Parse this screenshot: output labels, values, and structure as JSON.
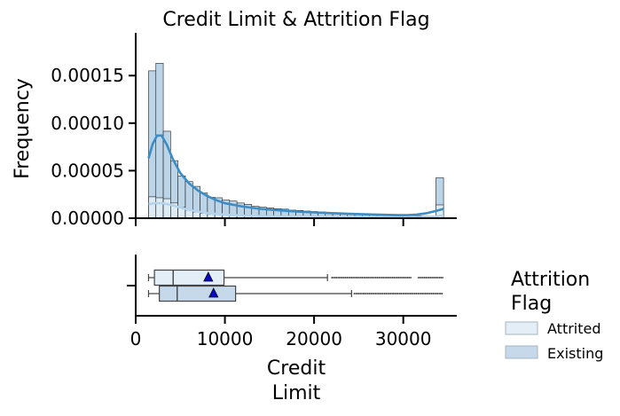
{
  "chart_data": [
    {
      "type": "histogram",
      "title": "Credit Limit & Attrition Flag",
      "xlabel": "",
      "ylabel": "Frequency",
      "xlim": [
        0,
        36000
      ],
      "ylim": [
        0,
        0.000195
      ],
      "yticks": [
        0,
        5e-05,
        0.0001,
        0.00015
      ],
      "ytick_labels": [
        "0.00000",
        "0.00005",
        "0.00010",
        "0.00015"
      ],
      "bin_edges": [
        1438,
        2264,
        3090,
        3916,
        4742,
        5568,
        6394,
        7220,
        8046,
        8872,
        9698,
        10524,
        11350,
        12176,
        13002,
        13828,
        14654,
        15480,
        16306,
        17132,
        17958,
        18784,
        19610,
        20436,
        21262,
        22088,
        22914,
        23740,
        24566,
        25392,
        26218,
        27044,
        27870,
        28696,
        29522,
        30348,
        31174,
        32000,
        32826,
        33652,
        34516
      ],
      "series": [
        {
          "name": "Existing",
          "color": "#bcd4e8",
          "values": [
            0.000155,
            0.000163,
            9.15e-05,
            6.05e-05,
            4.45e-05,
            3.85e-05,
            3.35e-05,
            2.65e-05,
            2.2e-05,
            2.15e-05,
            1.9e-05,
            1.8e-05,
            1.6e-05,
            1.45e-05,
            1.25e-05,
            1.15e-05,
            1.08e-05,
            1e-05,
            9.5e-06,
            8.5e-06,
            8.2e-06,
            7.5e-06,
            7e-06,
            6.6e-06,
            6.2e-06,
            5.8e-06,
            5.3e-06,
            4.9e-06,
            4.5e-06,
            4.1e-06,
            3.7e-06,
            3.5e-06,
            3.2e-06,
            3e-06,
            2.8e-06,
            2.6e-06,
            2.4e-06,
            2.2e-06,
            2.1e-06,
            4.25e-05
          ],
          "kde": [
            [
              1438,
              6.3e-05
            ],
            [
              1900,
              7.8e-05
            ],
            [
              2400,
              8.7e-05
            ],
            [
              2900,
              8.7e-05
            ],
            [
              3500,
              7.7e-05
            ],
            [
              4200,
              6.15e-05
            ],
            [
              5000,
              4.75e-05
            ],
            [
              6000,
              3.65e-05
            ],
            [
              7000,
              2.9e-05
            ],
            [
              8000,
              2.35e-05
            ],
            [
              9000,
              1.9e-05
            ],
            [
              10000,
              1.58e-05
            ],
            [
              12000,
              1.22e-05
            ],
            [
              14000,
              9.8e-06
            ],
            [
              16000,
              8.3e-06
            ],
            [
              18000,
              7.1e-06
            ],
            [
              20000,
              6.1e-06
            ],
            [
              22000,
              5.3e-06
            ],
            [
              24000,
              4.6e-06
            ],
            [
              26000,
              4e-06
            ],
            [
              28000,
              3.5e-06
            ],
            [
              29500,
              3.2e-06
            ],
            [
              30500,
              3.3e-06
            ],
            [
              31500,
              3.8e-06
            ],
            [
              32500,
              5e-06
            ],
            [
              33500,
              7.2e-06
            ],
            [
              34516,
              9.8e-06
            ]
          ]
        },
        {
          "name": "Attrited",
          "color": "#e3eef6",
          "values": [
            2.25e-05,
            2.15e-05,
            2.05e-05,
            1.6e-05,
            1.15e-05,
            8.5e-06,
            6.5e-06,
            5e-06,
            4.2e-06,
            3.6e-06,
            3.2e-06,
            2.8e-06,
            2.6e-06,
            2.4e-06,
            2.2e-06,
            2e-06,
            1.9e-06,
            1.8e-06,
            1.7e-06,
            1.6e-06,
            1.5e-06,
            1.5e-06,
            1.4e-06,
            1.4e-06,
            1.3e-06,
            1.3e-06,
            1.2e-06,
            1.2e-06,
            1.1e-06,
            1.1e-06,
            1e-06,
            1e-06,
            1e-06,
            1e-06,
            9e-07,
            9e-07,
            9e-07,
            9e-07,
            9e-07,
            1.4e-05
          ],
          "kde": [
            [
              1438,
              1.48e-05
            ],
            [
              2200,
              1.58e-05
            ],
            [
              3000,
              1.58e-05
            ],
            [
              4000,
              1.38e-05
            ],
            [
              5000,
              1.12e-05
            ],
            [
              6000,
              8.8e-06
            ],
            [
              7000,
              6.8e-06
            ],
            [
              8000,
              5.3e-06
            ],
            [
              10000,
              3.6e-06
            ],
            [
              12000,
              2.7e-06
            ],
            [
              15000,
              2e-06
            ],
            [
              18000,
              1.6e-06
            ],
            [
              22000,
              1.3e-06
            ],
            [
              26000,
              1.1e-06
            ],
            [
              30000,
              1e-06
            ],
            [
              32500,
              1.2e-06
            ],
            [
              33500,
              1.7e-06
            ],
            [
              34516,
              2.8e-06
            ]
          ]
        }
      ],
      "grid": false
    },
    {
      "type": "boxplot",
      "orientation": "horizontal",
      "xlabel": "Credit\nLimit",
      "xlabel_lines": [
        "Credit",
        "Limit"
      ],
      "xlim": [
        0,
        36000
      ],
      "xticks": [
        0,
        10000,
        20000,
        30000
      ],
      "xtick_labels": [
        "0",
        "10000",
        "20000",
        "30000"
      ],
      "series": [
        {
          "name": "Attrited",
          "color": "#e3eef6",
          "min": 1438,
          "q1": 2100,
          "median": 4200,
          "q3": 9900,
          "max": 21500,
          "mean": 8136,
          "outlier_ranges": [
            [
              22000,
              30900
            ],
            [
              31700,
              34516
            ]
          ]
        },
        {
          "name": "Existing",
          "color": "#c6d9ea",
          "min": 1438,
          "q1": 2650,
          "median": 4650,
          "q3": 11200,
          "max": 24200,
          "mean": 8727,
          "outlier_ranges": [
            [
              24500,
              34516
            ]
          ]
        }
      ]
    }
  ],
  "legend": {
    "title_lines": [
      "Attrition",
      "Flag"
    ],
    "placement": "right",
    "entries": [
      {
        "label": "Attrited",
        "color": "#e3eef6"
      },
      {
        "label": "Existing",
        "color": "#c6d9ea"
      }
    ]
  },
  "colors": {
    "kde_existing": "#3d8cc4",
    "kde_attrited": "#b5d3ea",
    "bar_edge": "#222222",
    "mean_marker": "#0a0ac8",
    "axis": "#000000"
  }
}
